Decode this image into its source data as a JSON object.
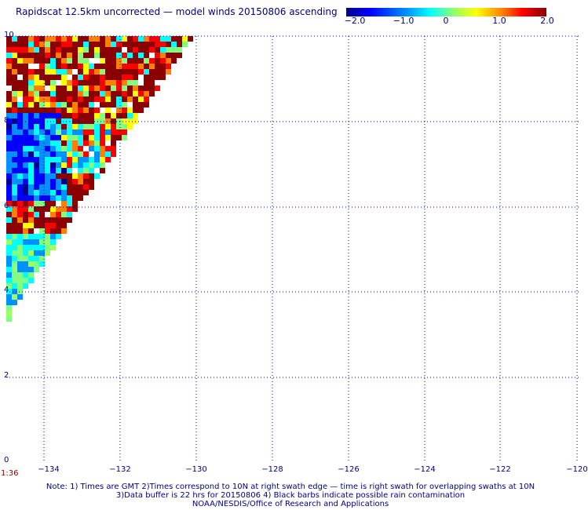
{
  "title": "Rapidscat 12.5km uncorrected — model winds 20150806 ascending",
  "colorbar": {
    "labels": [
      "−2.0",
      "−1.0",
      "0",
      "1.0",
      "2.0"
    ],
    "range": [
      -2.0,
      2.0
    ],
    "colors": [
      "#00008b",
      "#0000ff",
      "#0080ff",
      "#00ffff",
      "#80ff80",
      "#ffff00",
      "#ff8000",
      "#ff0000",
      "#8b0000"
    ]
  },
  "axes": {
    "x_ticks": [
      "−134",
      "−132",
      "−130",
      "−128",
      "−126",
      "−124",
      "−122",
      "−120"
    ],
    "x_tick_values": [
      -134,
      -132,
      -130,
      -128,
      -126,
      -124,
      -122,
      -120
    ],
    "y_ticks": [
      "10",
      "8",
      "6",
      "4",
      "2",
      "0"
    ],
    "y_tick_values": [
      10,
      8,
      6,
      4,
      2,
      0
    ],
    "lon_range": [
      -135,
      -120
    ],
    "lat_range": [
      0,
      10
    ],
    "grid": true
  },
  "time_label": "1:36",
  "notes": [
    "Note: 1) Times are GMT 2)Times correspond to 10N at right swath edge — time is right swath for overlapping swaths at 10N",
    "3)Data buffer is 22 hrs for 20150806 4) Black barbs indicate possible rain contamination",
    "NOAA/NESDIS/Office of Research and Applications"
  ],
  "swath": {
    "description_colors": "wind speed difference field, saturated high values in upper region, negative values in left-middle",
    "high_color": "#8b0000",
    "low_color": "#0000ff"
  }
}
